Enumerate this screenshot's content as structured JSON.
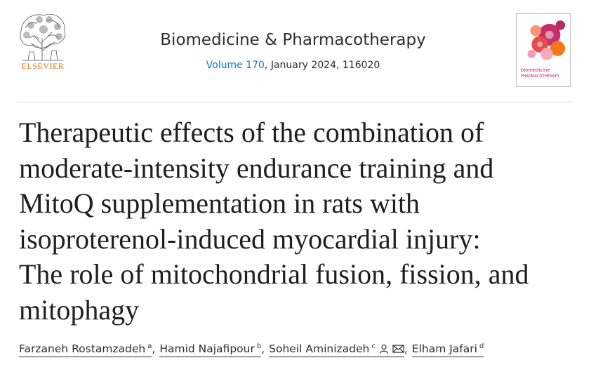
{
  "header": {
    "publisher": "ELSEVIER",
    "journal": "Biomedicine & Pharmacotherapy",
    "volume_link": "Volume 170",
    "issue_info": ", January 2024, 116020",
    "cover_title": [
      "biomedicine",
      "PHARMACOTHERAPY"
    ]
  },
  "article": {
    "title_lines": [
      "Therapeutic effects of the combination of",
      "moderate-intensity endurance training and",
      "MitoQ supplementation in rats with",
      "isoproterenol-induced myocardial injury:",
      "The role of mitochondrial fusion, fission, and",
      "mitophagy"
    ],
    "separator": ",",
    "authors": [
      {
        "name": "Farzaneh Rostamzadeh",
        "affiliation": "a"
      },
      {
        "name": "Hamid Najafipour",
        "affiliation": "b"
      },
      {
        "name": "Soheil Aminizadeh",
        "affiliation": "c",
        "corresponding": true
      },
      {
        "name": "Elham Jafari",
        "affiliation": "d"
      }
    ]
  }
}
